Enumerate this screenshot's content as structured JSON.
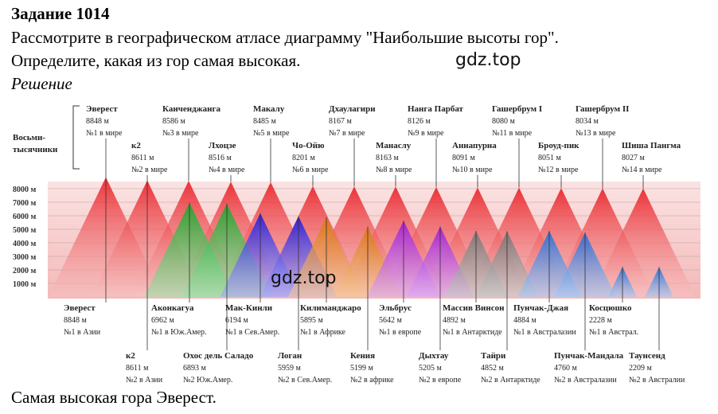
{
  "header": {
    "title": "Задание 1014"
  },
  "task": [
    "Рассмотрите в географическом атласе диаграмму \"Наибольшие высоты гор\".",
    "Определите, какая из гор самая высокая."
  ],
  "solution_label": "Решение",
  "watermarks": [
    "gdz.top",
    "gdz.top"
  ],
  "diagram": {
    "group_label": [
      "Восьми-",
      "тысячники"
    ],
    "scale": [
      "8000 м",
      "7000 м",
      "6000 м",
      "5000 м",
      "4000 м",
      "3000 м",
      "2000 м",
      "1000 м"
    ],
    "eight_thousanders": [
      {
        "name": "Эверест",
        "height": "8848 м",
        "rank": "№1 в мире"
      },
      {
        "name": "к2",
        "height": "8611 м",
        "rank": "№2 в мире"
      },
      {
        "name": "Канченджанга",
        "height": "8586 м",
        "rank": "№3 в мире"
      },
      {
        "name": "Лхоцзе",
        "height": "8516 м",
        "rank": "№4 в мире"
      },
      {
        "name": "Макалу",
        "height": "8485 м",
        "rank": "№5 в мире"
      },
      {
        "name": "Чо-Ойю",
        "height": "8201 м",
        "rank": "№6 в мире"
      },
      {
        "name": "Дхаулагири",
        "height": "8167 м",
        "rank": "№7 в мире"
      },
      {
        "name": "Манаслу",
        "height": "8163 м",
        "rank": "№8 в мире"
      },
      {
        "name": "Нанга Парбат",
        "height": "8126 м",
        "rank": "№9 в мире"
      },
      {
        "name": "Аннапурна",
        "height": "8091 м",
        "rank": "№10 в мире"
      },
      {
        "name": "Гашербрум I",
        "height": "8080 м",
        "rank": "№11 в мире"
      },
      {
        "name": "Броуд-пик",
        "height": "8051 м",
        "rank": "№12 в мире"
      },
      {
        "name": "Гашербрум II",
        "height": "8034 м",
        "rank": "№13 в мире"
      },
      {
        "name": "Шиша Пангма",
        "height": "8027 м",
        "rank": "№14 в мире"
      }
    ],
    "asia_peaks": [
      {
        "name": "Эверест",
        "height": "8848 м",
        "rank": "№1 в Азии"
      },
      {
        "name": "к2",
        "height": "8611 м",
        "rank": "№2 в Азии"
      }
    ],
    "other_peaks": [
      {
        "name": "Аконкагуа",
        "height": "6962 м",
        "rank": "№1 в Юж.Амер."
      },
      {
        "name": "Охос дель Саладо",
        "height": "6893 м",
        "rank": "№2 Юж.Амер."
      },
      {
        "name": "Мак-Кинли",
        "height": "6194 м",
        "rank": "№1 в Сев.Амер."
      },
      {
        "name": "Логан",
        "height": "5959 м",
        "rank": "№2 в Сев.Амер."
      },
      {
        "name": "Килиманджаро",
        "height": "5895 м",
        "rank": "№1 в Африке"
      },
      {
        "name": "Кения",
        "height": "5199 м",
        "rank": "№2 в африке"
      },
      {
        "name": "Эльбрус",
        "height": "5642 м",
        "rank": "№1 в европе"
      },
      {
        "name": "Дыхтау",
        "height": "5205 м",
        "rank": "№2 в европе"
      },
      {
        "name": "Массив Винсон",
        "height": "4892 м",
        "rank": "№1 в Антарктиде"
      },
      {
        "name": "Тайри",
        "height": "4852 м",
        "rank": "№2 в Антарктиде"
      },
      {
        "name": "Пунчак-Джая",
        "height": "4884 м",
        "rank": "№1 в Австралазии"
      },
      {
        "name": "Пунчак-Мандала",
        "height": "4760 м",
        "rank": "№2 в Австралазии"
      },
      {
        "name": "Косцюшко",
        "height": "2228 м",
        "rank": "№1 в Австрал."
      },
      {
        "name": "Таунсенд",
        "height": "2209 м",
        "rank": "№2 в Австралии"
      }
    ]
  },
  "answer": "Самая высокая гора Эверест."
}
